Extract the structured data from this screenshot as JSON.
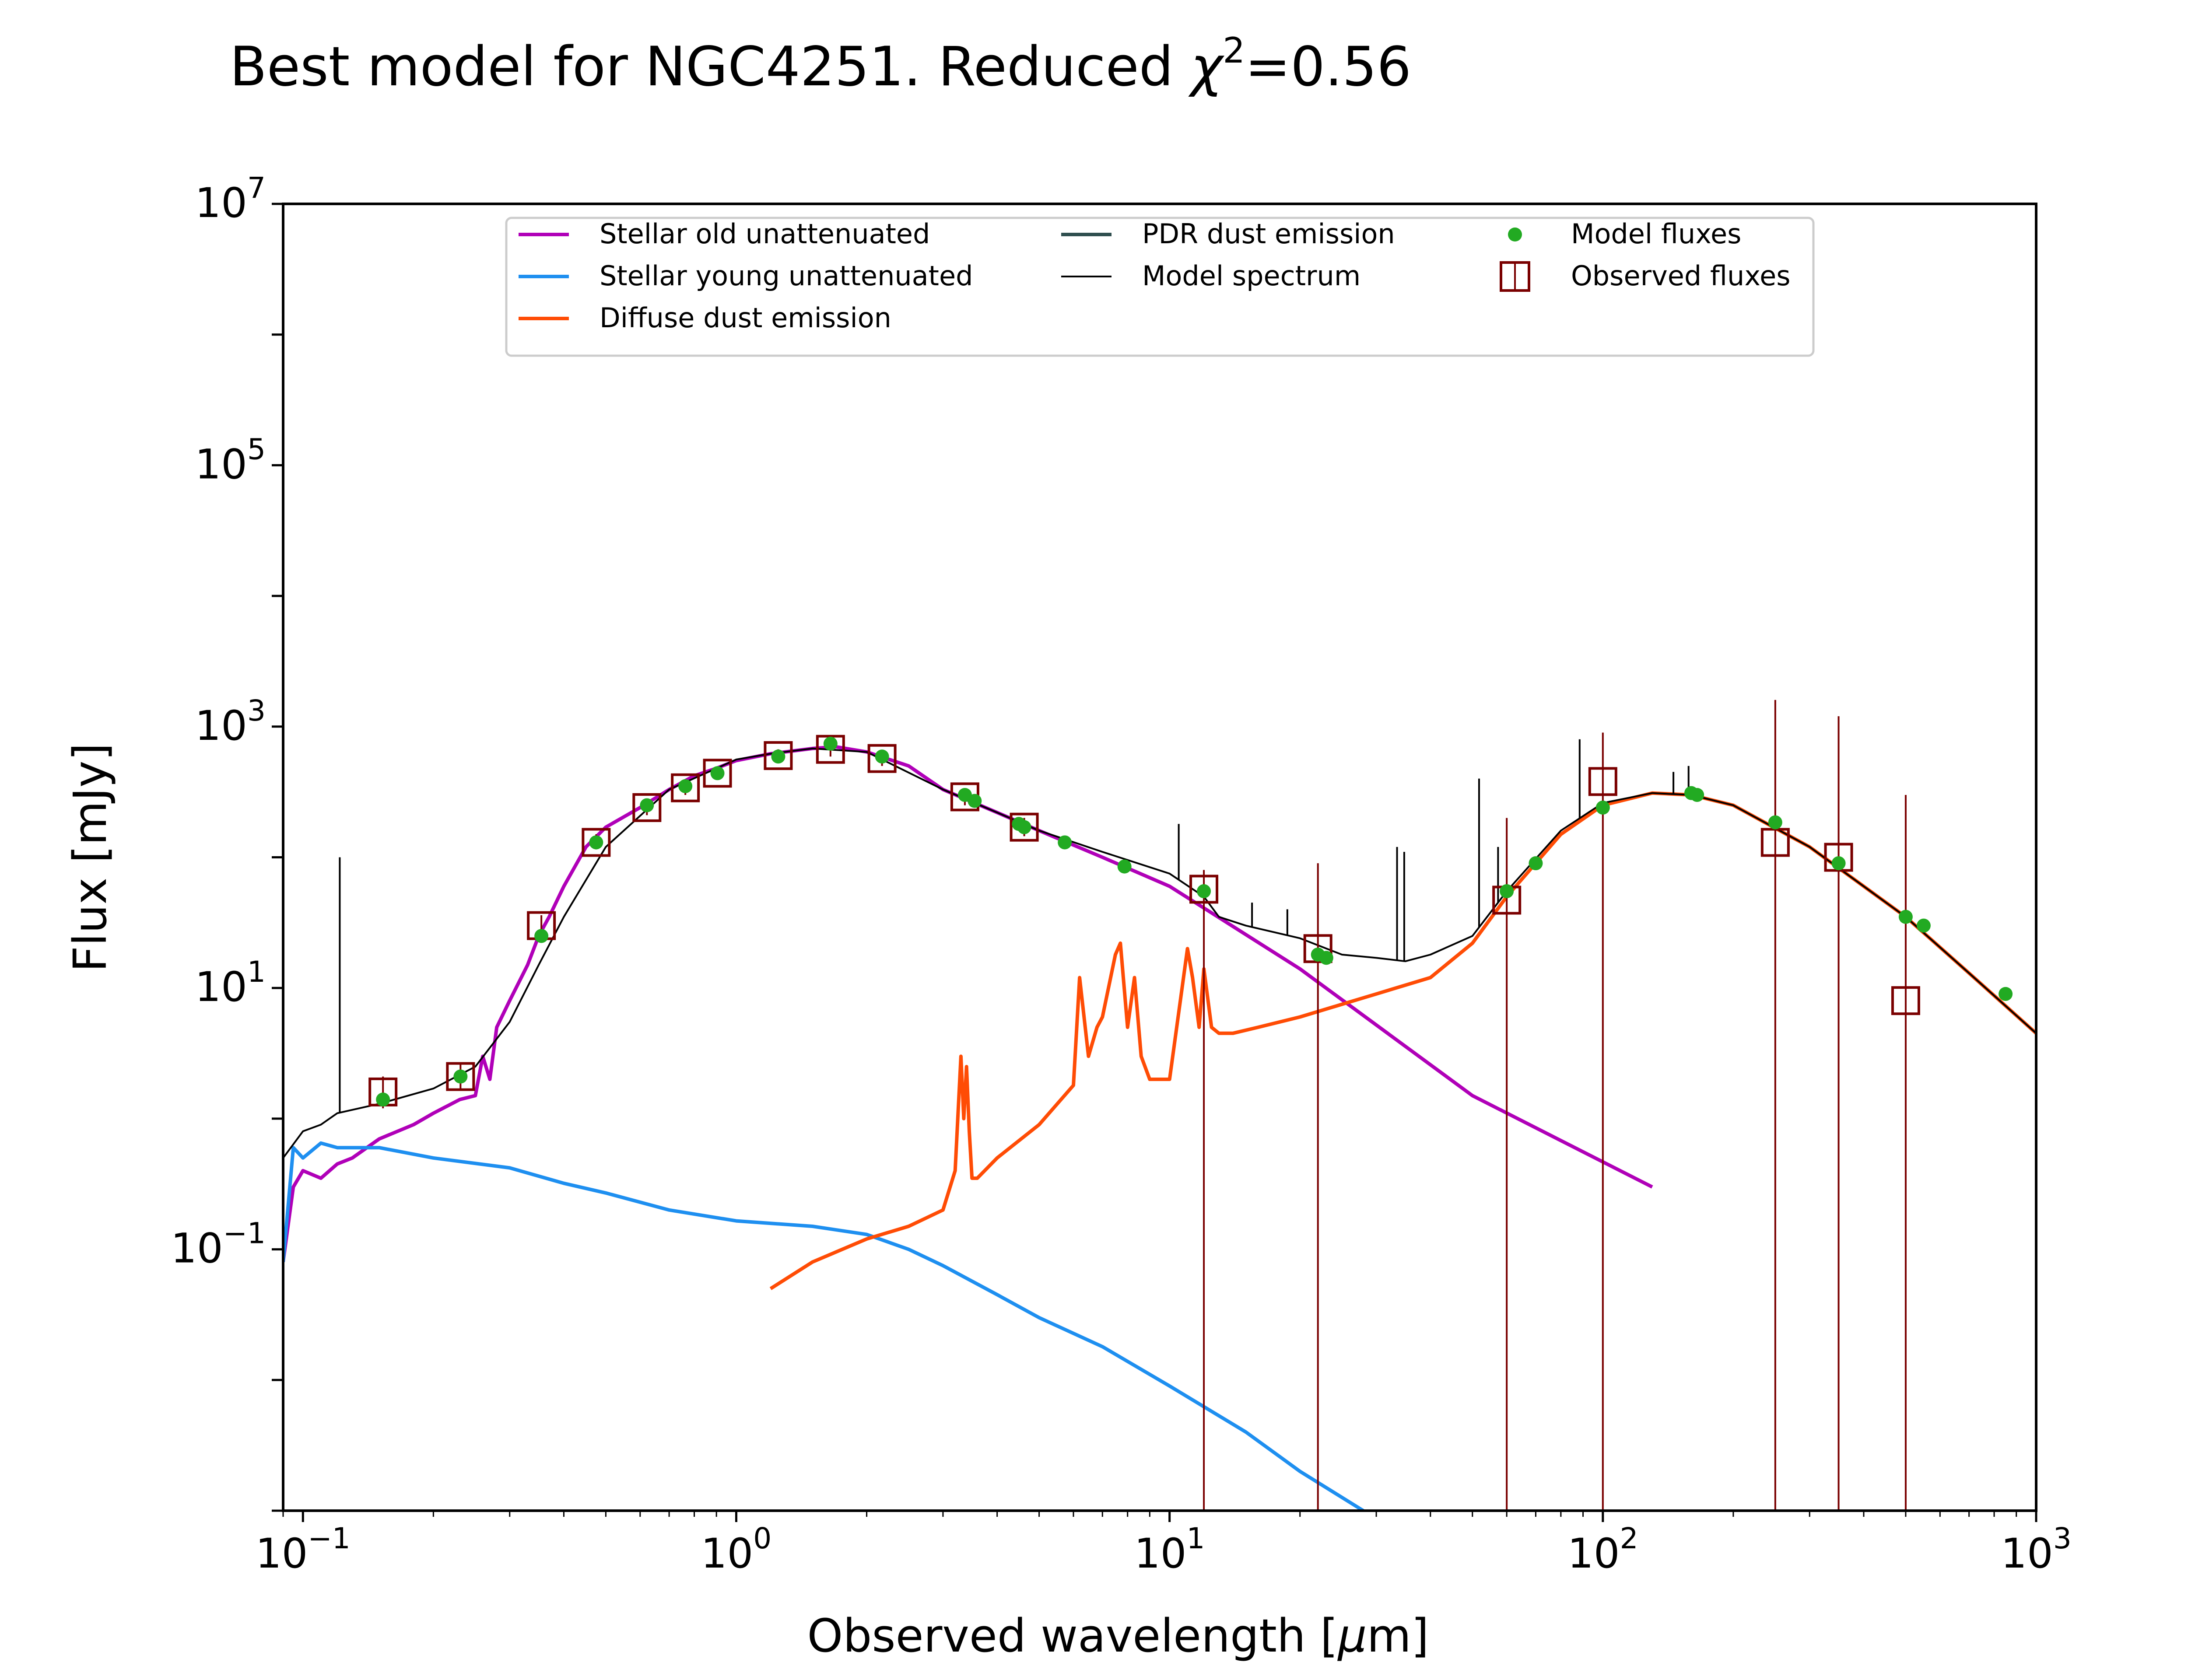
{
  "chart_data": {
    "type": "line",
    "title": "Best model for NGC4251. Reduced ",
    "title_chi": "χ",
    "title_chi_exp": "2",
    "title_value": "=0.56",
    "xlabel_pre": "Observed wavelength [",
    "xlabel_mu": "μ",
    "xlabel_post": "m]",
    "ylabel": "Flux [mJy]",
    "x_scale": "log",
    "y_scale": "log",
    "xlim": [
      0.09,
      1000
    ],
    "ylim": [
      0.001,
      10000000
    ],
    "x_ticks": [
      {
        "value": 0.1,
        "base": "10",
        "exp": "−1"
      },
      {
        "value": 1,
        "base": "10",
        "exp": "0"
      },
      {
        "value": 10,
        "base": "10",
        "exp": "1"
      },
      {
        "value": 100,
        "base": "10",
        "exp": "2"
      },
      {
        "value": 1000,
        "base": "10",
        "exp": "3"
      }
    ],
    "y_ticks": [
      {
        "value": 0.1,
        "base": "10",
        "exp": "−1"
      },
      {
        "value": 10,
        "base": "10",
        "exp": "1"
      },
      {
        "value": 1000,
        "base": "10",
        "exp": "3"
      },
      {
        "value": 100000,
        "base": "10",
        "exp": "5"
      },
      {
        "value": 10000000,
        "base": "10",
        "exp": "7"
      }
    ],
    "grid": false,
    "legend_position": "top-center",
    "legend": [
      {
        "label": "Stellar old unattenuated",
        "symbol": "line",
        "color": "#b000b8"
      },
      {
        "label": "Stellar young unattenuated",
        "symbol": "line",
        "color": "#1e8ff0"
      },
      {
        "label": "Diffuse dust emission",
        "symbol": "line",
        "color": "#ff4c05"
      },
      {
        "label": "PDR dust emission",
        "symbol": "line",
        "color": "#2f4f4f"
      },
      {
        "label": "Model spectrum",
        "symbol": "thin-line",
        "color": "#000000"
      },
      {
        "label": "Model fluxes",
        "symbol": "dot",
        "color": "#22aa22"
      },
      {
        "label": "Observed fluxes",
        "symbol": "square",
        "color": "#7a0000"
      }
    ],
    "series": [
      {
        "name": "Stellar old unattenuated",
        "color": "#b000b8",
        "x": [
          0.09,
          0.095,
          0.1,
          0.11,
          0.12,
          0.13,
          0.15,
          0.18,
          0.2,
          0.23,
          0.25,
          0.26,
          0.27,
          0.28,
          0.3,
          0.33,
          0.35,
          0.37,
          0.4,
          0.45,
          0.5,
          0.6,
          0.7,
          0.8,
          0.9,
          1.0,
          1.2,
          1.5,
          1.7,
          2.0,
          2.5,
          3.0,
          4.0,
          5.0,
          7.0,
          10,
          20,
          50,
          130
        ],
        "y": [
          0.08,
          0.3,
          0.4,
          0.35,
          0.45,
          0.5,
          0.7,
          0.9,
          1.1,
          1.4,
          1.5,
          3,
          2,
          5,
          8,
          15,
          25,
          35,
          60,
          120,
          170,
          240,
          330,
          420,
          480,
          550,
          620,
          680,
          700,
          640,
          500,
          330,
          220,
          160,
          100,
          60,
          14,
          1.5,
          0.3
        ]
      },
      {
        "name": "Stellar young unattenuated",
        "color": "#1e8ff0",
        "x": [
          0.09,
          0.095,
          0.1,
          0.11,
          0.12,
          0.15,
          0.2,
          0.3,
          0.4,
          0.5,
          0.7,
          1.0,
          1.5,
          2.0,
          2.5,
          3.0,
          4.0,
          5.0,
          7.0,
          10,
          15,
          20,
          28
        ],
        "y": [
          0.08,
          0.6,
          0.5,
          0.65,
          0.6,
          0.6,
          0.5,
          0.42,
          0.32,
          0.27,
          0.2,
          0.165,
          0.15,
          0.13,
          0.1,
          0.075,
          0.045,
          0.03,
          0.018,
          0.009,
          0.004,
          0.002,
          0.001
        ]
      },
      {
        "name": "Diffuse dust emission",
        "color": "#ff4c05",
        "x": [
          1.2,
          1.5,
          2.0,
          2.5,
          3.0,
          3.2,
          3.3,
          3.35,
          3.4,
          3.45,
          3.5,
          3.6,
          4.0,
          5.0,
          6.0,
          6.2,
          6.5,
          6.8,
          7.0,
          7.5,
          7.7,
          8.0,
          8.3,
          8.6,
          9.0,
          10.0,
          11.0,
          11.3,
          11.7,
          12.0,
          12.5,
          13.0,
          14.0,
          16.0,
          20.0,
          25.0,
          30.0,
          40.0,
          50.0,
          60.0,
          80.0,
          100.0,
          130.0,
          160.0,
          200.0,
          300.0,
          500.0,
          700.0,
          1000.0
        ],
        "y": [
          0.05,
          0.08,
          0.12,
          0.15,
          0.2,
          0.4,
          3,
          1,
          2.5,
          0.8,
          0.35,
          0.35,
          0.5,
          0.9,
          1.8,
          12,
          3,
          5,
          6,
          18,
          22,
          5,
          12,
          3,
          2,
          2,
          20,
          12,
          5,
          14,
          5,
          4.5,
          4.5,
          5,
          6,
          7.5,
          9,
          12,
          22,
          50,
          150,
          250,
          310,
          300,
          250,
          120,
          35,
          13,
          4.5
        ]
      },
      {
        "name": "Model spectrum",
        "color": "#000000",
        "x": [
          0.09,
          0.1,
          0.11,
          0.12,
          0.15,
          0.2,
          0.25,
          0.3,
          0.35,
          0.4,
          0.5,
          0.7,
          1.0,
          1.2,
          1.5,
          2.0,
          3.0,
          4.0,
          5.0,
          7.0,
          10,
          12,
          13,
          15,
          20,
          25,
          30,
          35,
          40,
          50,
          60,
          80,
          100,
          130,
          160,
          200,
          300,
          500,
          700,
          1000
        ],
        "y": [
          0.5,
          0.8,
          0.9,
          1.1,
          1.3,
          1.7,
          2.5,
          5.5,
          15,
          35,
          120,
          330,
          560,
          620,
          680,
          640,
          330,
          220,
          160,
          110,
          75,
          50,
          35,
          30,
          24,
          18,
          17,
          16,
          18,
          25,
          55,
          160,
          260,
          310,
          300,
          250,
          120,
          35,
          13,
          4.5
        ]
      }
    ],
    "spectrum_lines": [
      {
        "x": 0.1216,
        "y": 100
      },
      {
        "x": 10.5,
        "y": 180
      },
      {
        "x": 15.5,
        "y": 45
      },
      {
        "x": 18.7,
        "y": 40
      },
      {
        "x": 33.5,
        "y": 120
      },
      {
        "x": 34.8,
        "y": 110
      },
      {
        "x": 51.8,
        "y": 400
      },
      {
        "x": 57.3,
        "y": 120
      },
      {
        "x": 88.4,
        "y": 800
      },
      {
        "x": 145.5,
        "y": 450
      },
      {
        "x": 157.7,
        "y": 500
      }
    ],
    "model_fluxes": {
      "name": "Model fluxes",
      "x": [
        0.153,
        0.231,
        0.355,
        0.475,
        0.622,
        0.763,
        0.905,
        1.25,
        1.65,
        2.17,
        3.37,
        3.55,
        4.49,
        4.62,
        5.73,
        7.87,
        12.0,
        22.0,
        23.0,
        60.0,
        70.0,
        100.0,
        160.0,
        165.0,
        250.0,
        350.0,
        500.0,
        550.0,
        850.0
      ],
      "y": [
        1.4,
        2.1,
        25,
        130,
        250,
        350,
        440,
        590,
        740,
        590,
        300,
        270,
        180,
        170,
        130,
        85,
        55,
        18,
        17,
        55,
        90,
        240,
        310,
        300,
        185,
        90,
        35,
        30,
        9
      ]
    },
    "observed_fluxes": {
      "name": "Observed fluxes",
      "x": [
        0.153,
        0.231,
        0.355,
        0.475,
        0.622,
        0.763,
        0.905,
        1.25,
        1.65,
        2.17,
        3.37,
        4.62,
        12.0,
        22.0,
        60.0,
        100.0,
        250.0,
        350.0,
        500.0
      ],
      "y": [
        1.6,
        2.1,
        30,
        130,
        240,
        340,
        440,
        600,
        670,
        570,
        290,
        170,
        57,
        20,
        47,
        380,
        130,
        100,
        8
      ],
      "err_low": [
        1.2,
        1.7,
        25,
        115,
        210,
        300,
        390,
        530,
        590,
        500,
        250,
        145,
        0.001,
        0.001,
        0.001,
        0.001,
        0.001,
        0.001,
        0.001
      ],
      "err_high": [
        2.1,
        2.6,
        36,
        150,
        270,
        380,
        490,
        670,
        750,
        640,
        330,
        200,
        80,
        90,
        200,
        900,
        1600,
        1200,
        300
      ]
    }
  }
}
